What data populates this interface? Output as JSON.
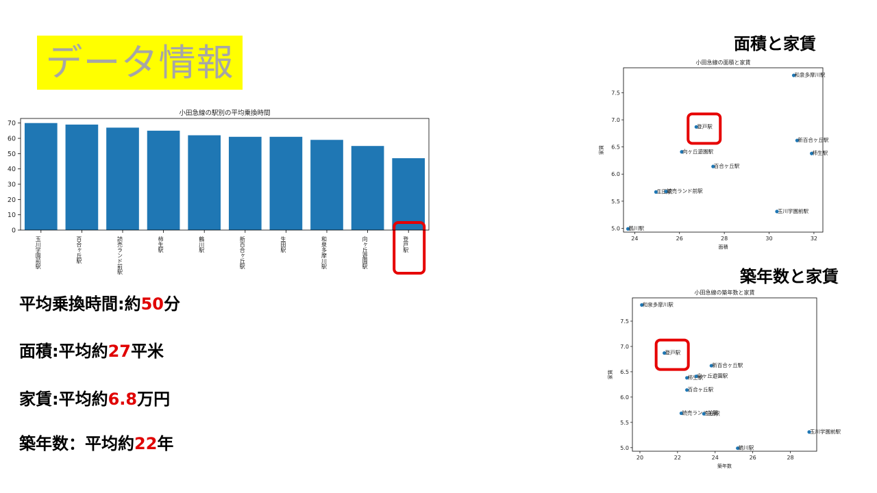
{
  "page": {
    "title": "データ情報",
    "stats": [
      {
        "label": "平均乗換時間:約",
        "num": "50",
        "unit": "分"
      },
      {
        "label": "面積:平均約",
        "num": "27",
        "unit": "平米"
      },
      {
        "label": "家賃:平均約",
        "num": "6.8",
        "unit": "万円"
      },
      {
        "label": "築年数：平均約",
        "num": "22",
        "unit": "年"
      }
    ],
    "area_section_title": "面積と家賃",
    "age_section_title": "築年数と家賃"
  },
  "colors": {
    "bar": "#1f77b4",
    "highlight": "#e60000",
    "title_bg": "#ffff00",
    "title_text": "#a6a6a6",
    "number_red": "#e00000"
  },
  "chart_data": [
    {
      "type": "bar",
      "title": "小田急線の駅別の平均乗換時間",
      "categories": [
        "玉川学園前駅",
        "百合ヶ丘駅",
        "読売ランド前駅",
        "柿生駅",
        "鶴川駅",
        "新百合ヶ丘駅",
        "生田駅",
        "和泉多摩川駅",
        "向ヶ丘遊園駅",
        "登戸駅"
      ],
      "values": [
        70,
        69,
        67,
        65,
        62,
        61,
        61,
        59,
        55,
        47
      ],
      "ylim": [
        0,
        73
      ],
      "yticks": [
        0,
        10,
        20,
        30,
        40,
        50,
        60,
        70
      ],
      "highlight": "登戸駅"
    },
    {
      "type": "scatter",
      "title": "小田急線の面積と家賃",
      "xlabel": "面積",
      "ylabel": "家賃",
      "xlim": [
        23.5,
        32.4
      ],
      "ylim": [
        4.93,
        7.96
      ],
      "xticks": [
        24,
        26,
        28,
        30,
        32
      ],
      "yticks": [
        5.0,
        5.5,
        6.0,
        6.5,
        7.0,
        7.5
      ],
      "points": [
        {
          "label": "和泉多摩川駅",
          "x": 31.1,
          "y": 7.82
        },
        {
          "label": "登戸駅",
          "x": 26.75,
          "y": 6.87
        },
        {
          "label": "新百合ヶ丘駅",
          "x": 31.25,
          "y": 6.62
        },
        {
          "label": "向ヶ丘遊園駅",
          "x": 26.1,
          "y": 6.41
        },
        {
          "label": "柿生駅",
          "x": 31.9,
          "y": 6.38
        },
        {
          "label": "百合ヶ丘駅",
          "x": 27.5,
          "y": 6.14
        },
        {
          "label": "生田駅",
          "x": 24.95,
          "y": 5.67
        },
        {
          "label": "読売ランド前駅",
          "x": 25.4,
          "y": 5.68
        },
        {
          "label": "玉川学園前駅",
          "x": 30.35,
          "y": 5.31
        },
        {
          "label": "鶴川駅",
          "x": 23.7,
          "y": 4.99
        }
      ],
      "highlight": "登戸駅"
    },
    {
      "type": "scatter",
      "title": "小田急線の築年数と家賃",
      "xlabel": "築年数",
      "ylabel": "家賃",
      "xlim": [
        19.6,
        29.4
      ],
      "ylim": [
        4.93,
        7.96
      ],
      "xticks": [
        20,
        22,
        24,
        26,
        28
      ],
      "yticks": [
        5.0,
        5.5,
        6.0,
        6.5,
        7.0,
        7.5
      ],
      "points": [
        {
          "label": "和泉多摩川駅",
          "x": 20.1,
          "y": 7.82
        },
        {
          "label": "登戸駅",
          "x": 21.3,
          "y": 6.87
        },
        {
          "label": "新百合ヶ丘駅",
          "x": 23.8,
          "y": 6.62
        },
        {
          "label": "柿生駅",
          "x": 22.5,
          "y": 6.38
        },
        {
          "label": "向ヶ丘遊園駅",
          "x": 23.0,
          "y": 6.41
        },
        {
          "label": "百合ヶ丘駅",
          "x": 22.5,
          "y": 6.14
        },
        {
          "label": "読売ランド前駅",
          "x": 22.2,
          "y": 5.68
        },
        {
          "label": "生田駅",
          "x": 23.4,
          "y": 5.67
        },
        {
          "label": "玉川学園前駅",
          "x": 29.0,
          "y": 5.31
        },
        {
          "label": "鶴川駅",
          "x": 25.2,
          "y": 4.99
        }
      ],
      "highlight": "登戸駅"
    }
  ]
}
